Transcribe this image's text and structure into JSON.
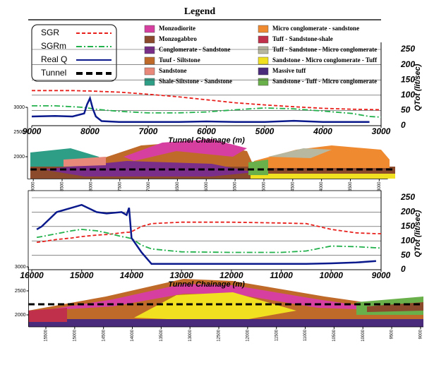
{
  "legend": {
    "title": "Legend",
    "items": [
      {
        "name": "Monzodiorite",
        "color": "#d63fa0"
      },
      {
        "name": "Monzogabbro",
        "color": "#8b4a2b"
      },
      {
        "name": "Conglomerate - Sandstone",
        "color": "#7a2e8a"
      },
      {
        "name": "Tuuf - Siltstone",
        "color": "#c06a2a"
      },
      {
        "name": "Sandstone",
        "color": "#e8887a"
      },
      {
        "name": "Shale-Siltstone - Sandstone",
        "color": "#2e9e86"
      },
      {
        "name": "Micro conglomerate - sandstone",
        "color": "#f08a30"
      },
      {
        "name": "Tuff - Sandstone-shale",
        "color": "#c0304a"
      },
      {
        "name": "Tuff - Sandstone - Micro conglomerate",
        "color": "#b8b8a0"
      },
      {
        "name": "Sandstone - Micro conglomerate - Tuff",
        "color": "#f0e020"
      },
      {
        "name": "Massive tuff",
        "color": "#4a2a7a"
      },
      {
        "name": "Sandstone - Tuff - Micro conglomerate",
        "color": "#6ab04a"
      }
    ],
    "tunnel": {
      "name": "Tunnel",
      "color": "#000000"
    }
  },
  "chart_data": [
    {
      "type": "line",
      "xlabel": "Tunnel Chainage (m)",
      "ylabel": "QTot (lit/sec)",
      "xlim": [
        9000,
        3000
      ],
      "xticks": [
        9000,
        8000,
        7000,
        6000,
        5000,
        4000,
        3000
      ],
      "ylim": [
        0,
        250
      ],
      "yticks": [
        0,
        50,
        100,
        150,
        200,
        250
      ],
      "grid": true,
      "x": [
        9000,
        8600,
        8300,
        8100,
        8050,
        8000,
        7950,
        7900,
        7800,
        7500,
        7000,
        6500,
        6000,
        5500,
        5000,
        4500,
        4000,
        3500,
        3200,
        3000
      ],
      "series": [
        {
          "name": "SGR",
          "color": "#e8201c",
          "dash": "5,3",
          "values": [
            115,
            115,
            115,
            114,
            114,
            114,
            113,
            113,
            112,
            110,
            103,
            95,
            85,
            75,
            68,
            62,
            57,
            54,
            53,
            52
          ]
        },
        {
          "name": "SGRm",
          "color": "#22b14c",
          "dash": "8,3,2,3",
          "values": [
            65,
            65,
            62,
            60,
            58,
            57,
            55,
            54,
            52,
            47,
            42,
            42,
            45,
            52,
            58,
            55,
            48,
            40,
            30,
            28
          ]
        },
        {
          "name": "Real Q",
          "color": "#0a1a8c",
          "dash": "none",
          "values": [
            30,
            32,
            30,
            40,
            70,
            90,
            55,
            30,
            15,
            12,
            12,
            12,
            14,
            12,
            12,
            16,
            12,
            12,
            12,
            null
          ]
        }
      ]
    },
    {
      "type": "section",
      "xlim": [
        9100,
        2850
      ],
      "xticks": [
        9000,
        8500,
        8000,
        7500,
        7000,
        6500,
        6000,
        5500,
        5000,
        4500,
        4000,
        3500,
        3000
      ],
      "ylim": [
        1550,
        3000
      ],
      "yticks": [
        2000,
        2500,
        3000
      ]
    },
    {
      "type": "line",
      "xlabel": "Tunnel Chainage (m)",
      "ylabel": "QTot (lit/sec)",
      "xlim": [
        16000,
        9000
      ],
      "xticks": [
        16000,
        15000,
        14000,
        13000,
        12000,
        11000,
        10000,
        9000
      ],
      "ylim": [
        0,
        250
      ],
      "yticks": [
        0,
        50,
        100,
        150,
        200,
        250
      ],
      "grid": true,
      "x": [
        15900,
        15800,
        15500,
        15200,
        15000,
        14700,
        14500,
        14200,
        14100,
        14050,
        14000,
        13800,
        13600,
        13000,
        12000,
        11000,
        10500,
        10000,
        9500,
        9100,
        9000
      ],
      "series": [
        {
          "name": "SGR",
          "color": "#e8201c",
          "dash": "5,3",
          "values": [
            95,
            97,
            105,
            110,
            115,
            120,
            122,
            128,
            130,
            130,
            132,
            150,
            160,
            165,
            165,
            162,
            160,
            140,
            128,
            125,
            125
          ]
        },
        {
          "name": "SGRm",
          "color": "#22b14c",
          "dash": "8,3,2,3",
          "values": [
            112,
            115,
            125,
            135,
            140,
            135,
            128,
            115,
            112,
            110,
            108,
            85,
            72,
            62,
            60,
            60,
            65,
            82,
            80,
            76,
            75
          ]
        },
        {
          "name": "Real Q",
          "color": "#0a1a8c",
          "dash": "none",
          "values": [
            140,
            150,
            200,
            215,
            225,
            200,
            195,
            200,
            190,
            215,
            110,
            60,
            20,
            20,
            20,
            20,
            20,
            22,
            25,
            30,
            null
          ]
        }
      ]
    },
    {
      "type": "section",
      "xlim": [
        15800,
        8950
      ],
      "xticks": [
        15500,
        15000,
        14500,
        14000,
        13500,
        13000,
        12500,
        12000,
        11500,
        11000,
        10500,
        10000,
        9500,
        9000
      ],
      "ylim": [
        1750,
        3000
      ],
      "yticks": [
        2000,
        2500,
        3000
      ]
    }
  ]
}
